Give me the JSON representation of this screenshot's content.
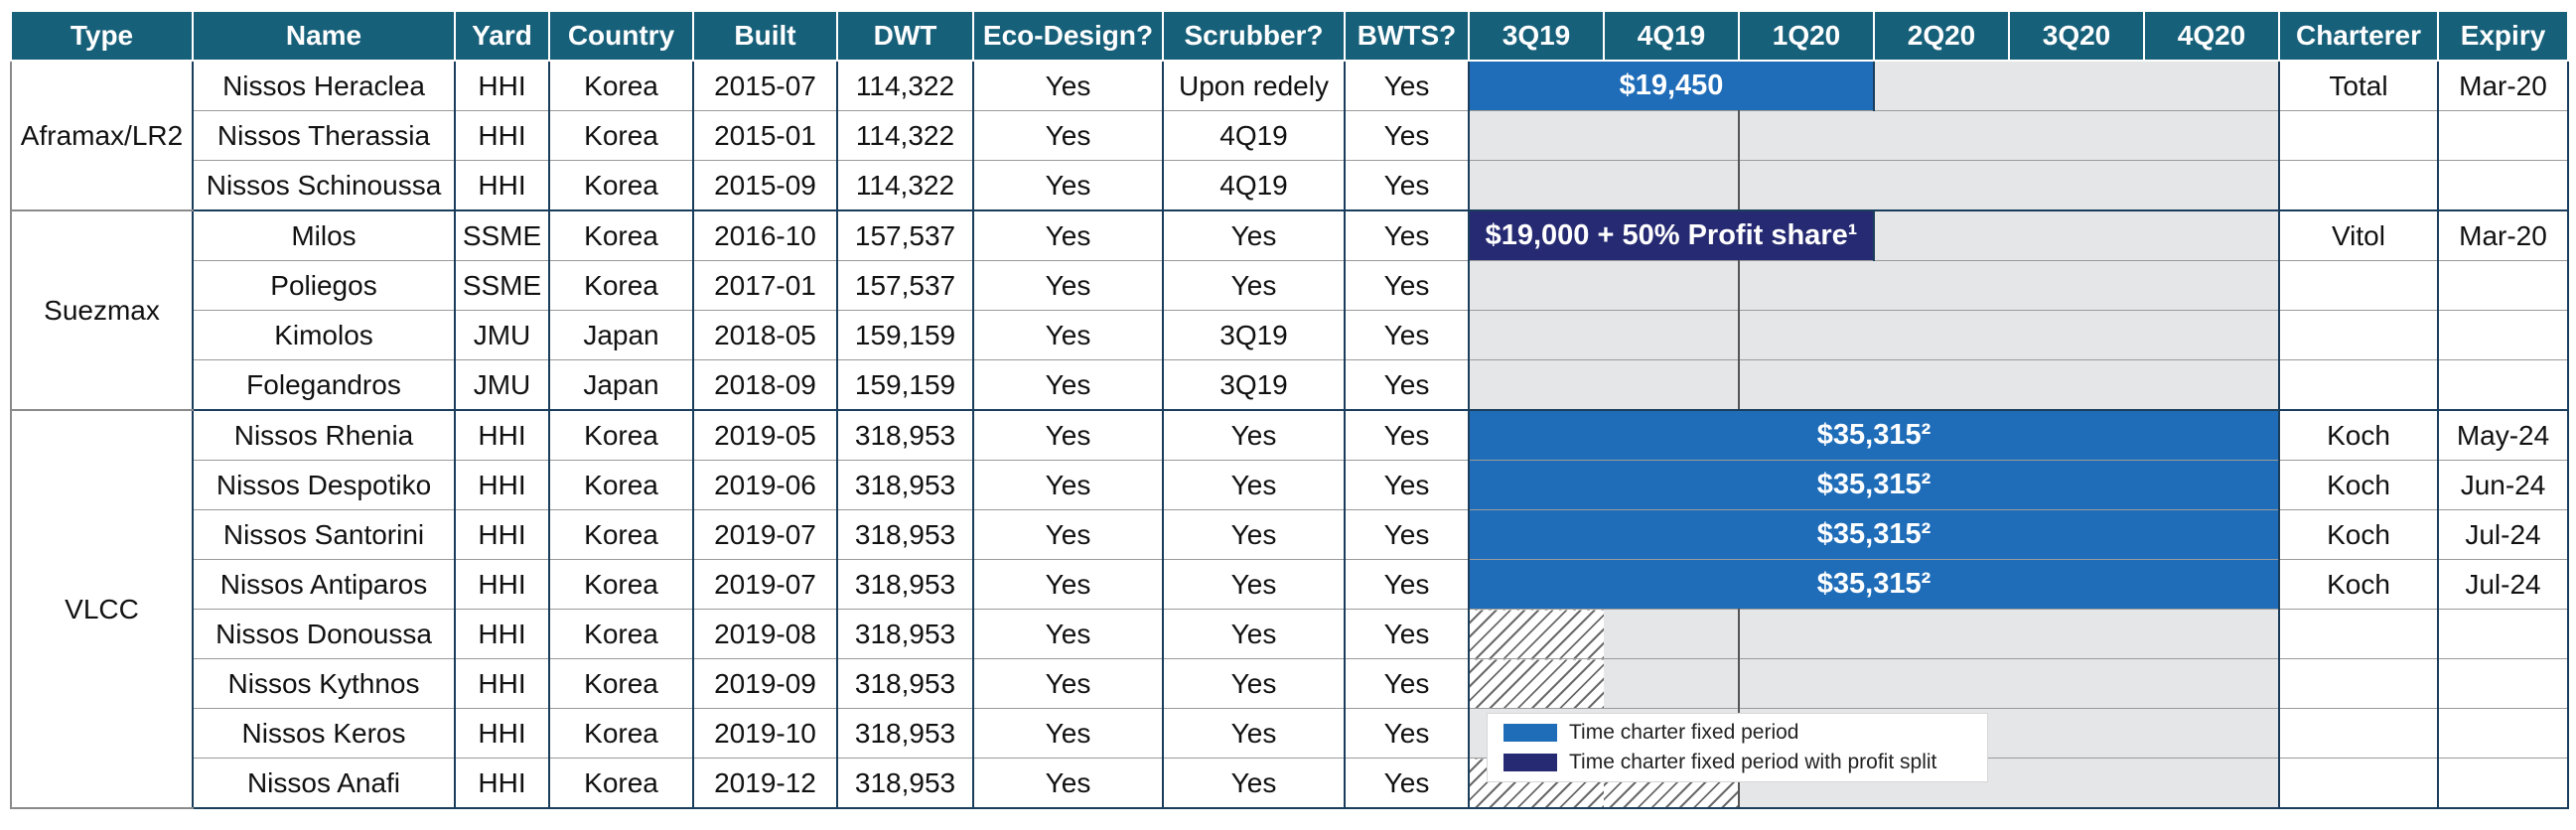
{
  "colors": {
    "header_bg": "#17607a",
    "fixed_period": "#1f6db8",
    "profit_split": "#262a72",
    "open_period": "#e5e6e8"
  },
  "headers": [
    "Type",
    "Name",
    "Yard",
    "Country",
    "Built",
    "DWT",
    "Eco-Design?",
    "Scrubber?",
    "BWTS?",
    "3Q19",
    "4Q19",
    "1Q20",
    "2Q20",
    "3Q20",
    "4Q20",
    "Charterer",
    "Expiry"
  ],
  "groups": [
    {
      "type": "Aframax/LR2"
    },
    {
      "type": "Suezmax"
    },
    {
      "type": "VLCC"
    }
  ],
  "vessels": [
    {
      "name": "Nissos Heraclea",
      "yard": "HHI",
      "country": "Korea",
      "built": "2015-07",
      "dwt": "114,322",
      "eco": "Yes",
      "scrubber": "Upon redely",
      "bwts": "Yes",
      "charter": "$19,450",
      "charterer": "Total",
      "expiry": "Mar-20"
    },
    {
      "name": "Nissos Therassia",
      "yard": "HHI",
      "country": "Korea",
      "built": "2015-01",
      "dwt": "114,322",
      "eco": "Yes",
      "scrubber": "4Q19",
      "bwts": "Yes",
      "charterer": "",
      "expiry": ""
    },
    {
      "name": "Nissos Schinoussa",
      "yard": "HHI",
      "country": "Korea",
      "built": "2015-09",
      "dwt": "114,322",
      "eco": "Yes",
      "scrubber": "4Q19",
      "bwts": "Yes",
      "charterer": "",
      "expiry": ""
    },
    {
      "name": "Milos",
      "yard": "SSME",
      "country": "Korea",
      "built": "2016-10",
      "dwt": "157,537",
      "eco": "Yes",
      "scrubber": "Yes",
      "bwts": "Yes",
      "charter": "$19,000 + 50% Profit share¹",
      "charterer": "Vitol",
      "expiry": "Mar-20"
    },
    {
      "name": "Poliegos",
      "yard": "SSME",
      "country": "Korea",
      "built": "2017-01",
      "dwt": "157,537",
      "eco": "Yes",
      "scrubber": "Yes",
      "bwts": "Yes",
      "charterer": "",
      "expiry": ""
    },
    {
      "name": "Kimolos",
      "yard": "JMU",
      "country": "Japan",
      "built": "2018-05",
      "dwt": "159,159",
      "eco": "Yes",
      "scrubber": "3Q19",
      "bwts": "Yes",
      "charterer": "",
      "expiry": ""
    },
    {
      "name": "Folegandros",
      "yard": "JMU",
      "country": "Japan",
      "built": "2018-09",
      "dwt": "159,159",
      "eco": "Yes",
      "scrubber": "3Q19",
      "bwts": "Yes",
      "charterer": "",
      "expiry": ""
    },
    {
      "name": "Nissos Rhenia",
      "yard": "HHI",
      "country": "Korea",
      "built": "2019-05",
      "dwt": "318,953",
      "eco": "Yes",
      "scrubber": "Yes",
      "bwts": "Yes",
      "charter": "$35,315²",
      "charterer": "Koch",
      "expiry": "May-24"
    },
    {
      "name": "Nissos Despotiko",
      "yard": "HHI",
      "country": "Korea",
      "built": "2019-06",
      "dwt": "318,953",
      "eco": "Yes",
      "scrubber": "Yes",
      "bwts": "Yes",
      "charter": "$35,315²",
      "charterer": "Koch",
      "expiry": "Jun-24"
    },
    {
      "name": "Nissos Santorini",
      "yard": "HHI",
      "country": "Korea",
      "built": "2019-07",
      "dwt": "318,953",
      "eco": "Yes",
      "scrubber": "Yes",
      "bwts": "Yes",
      "charter": "$35,315²",
      "charterer": "Koch",
      "expiry": "Jul-24"
    },
    {
      "name": "Nissos Antiparos",
      "yard": "HHI",
      "country": "Korea",
      "built": "2019-07",
      "dwt": "318,953",
      "eco": "Yes",
      "scrubber": "Yes",
      "bwts": "Yes",
      "charter": "$35,315²",
      "charterer": "Koch",
      "expiry": "Jul-24"
    },
    {
      "name": "Nissos Donoussa",
      "yard": "HHI",
      "country": "Korea",
      "built": "2019-08",
      "dwt": "318,953",
      "eco": "Yes",
      "scrubber": "Yes",
      "bwts": "Yes",
      "charterer": "",
      "expiry": ""
    },
    {
      "name": "Nissos Kythnos",
      "yard": "HHI",
      "country": "Korea",
      "built": "2019-09",
      "dwt": "318,953",
      "eco": "Yes",
      "scrubber": "Yes",
      "bwts": "Yes",
      "charterer": "",
      "expiry": ""
    },
    {
      "name": "Nissos Keros",
      "yard": "HHI",
      "country": "Korea",
      "built": "2019-10",
      "dwt": "318,953",
      "eco": "Yes",
      "scrubber": "Yes",
      "bwts": "Yes",
      "charterer": "",
      "expiry": ""
    },
    {
      "name": "Nissos Anafi",
      "yard": "HHI",
      "country": "Korea",
      "built": "2019-12",
      "dwt": "318,953",
      "eco": "Yes",
      "scrubber": "Yes",
      "bwts": "Yes",
      "charterer": "",
      "expiry": ""
    }
  ],
  "legend": {
    "fixed": "Time charter fixed period",
    "profit": "Time charter fixed period with profit split"
  }
}
